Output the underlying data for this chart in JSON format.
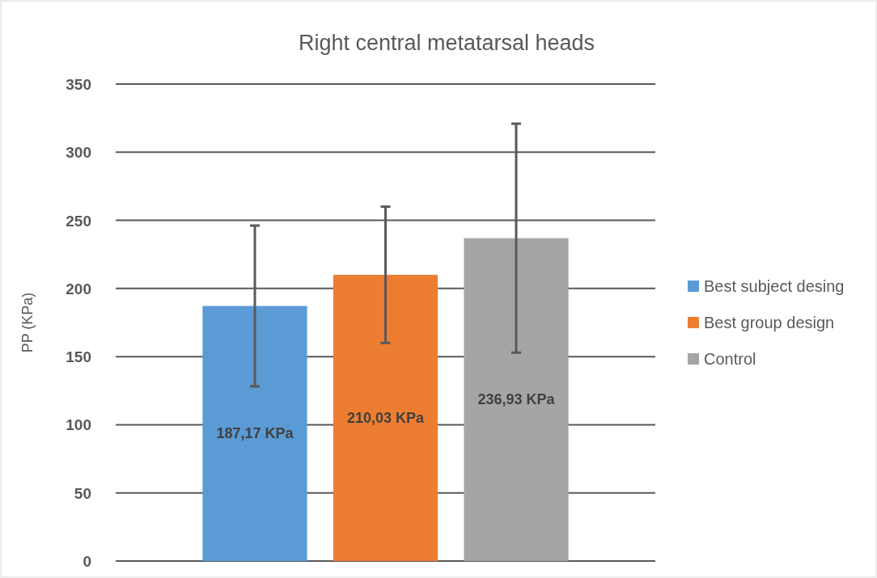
{
  "chart_data": {
    "type": "bar",
    "title": "Right central metatarsal heads",
    "ylabel": "PP (KPa)",
    "categories": [
      null
    ],
    "ylim": [
      0,
      350
    ],
    "yticks": [
      0,
      50,
      100,
      150,
      200,
      250,
      300,
      350
    ],
    "grid": "y",
    "legend": "right",
    "series": [
      {
        "name": "Best subject desing",
        "color": "#5b9bd5",
        "values": [
          187.17
        ],
        "errors": [
          59
        ],
        "value_labels": [
          "187,17 KPa"
        ]
      },
      {
        "name": "Best group design",
        "color": "#ed7d31",
        "values": [
          210.03
        ],
        "errors": [
          50
        ],
        "value_labels": [
          "210,03 KPa"
        ]
      },
      {
        "name": "Control",
        "color": "#a5a5a5",
        "values": [
          236.93
        ],
        "errors": [
          84
        ],
        "value_labels": [
          "236,93 KPa"
        ]
      }
    ]
  }
}
